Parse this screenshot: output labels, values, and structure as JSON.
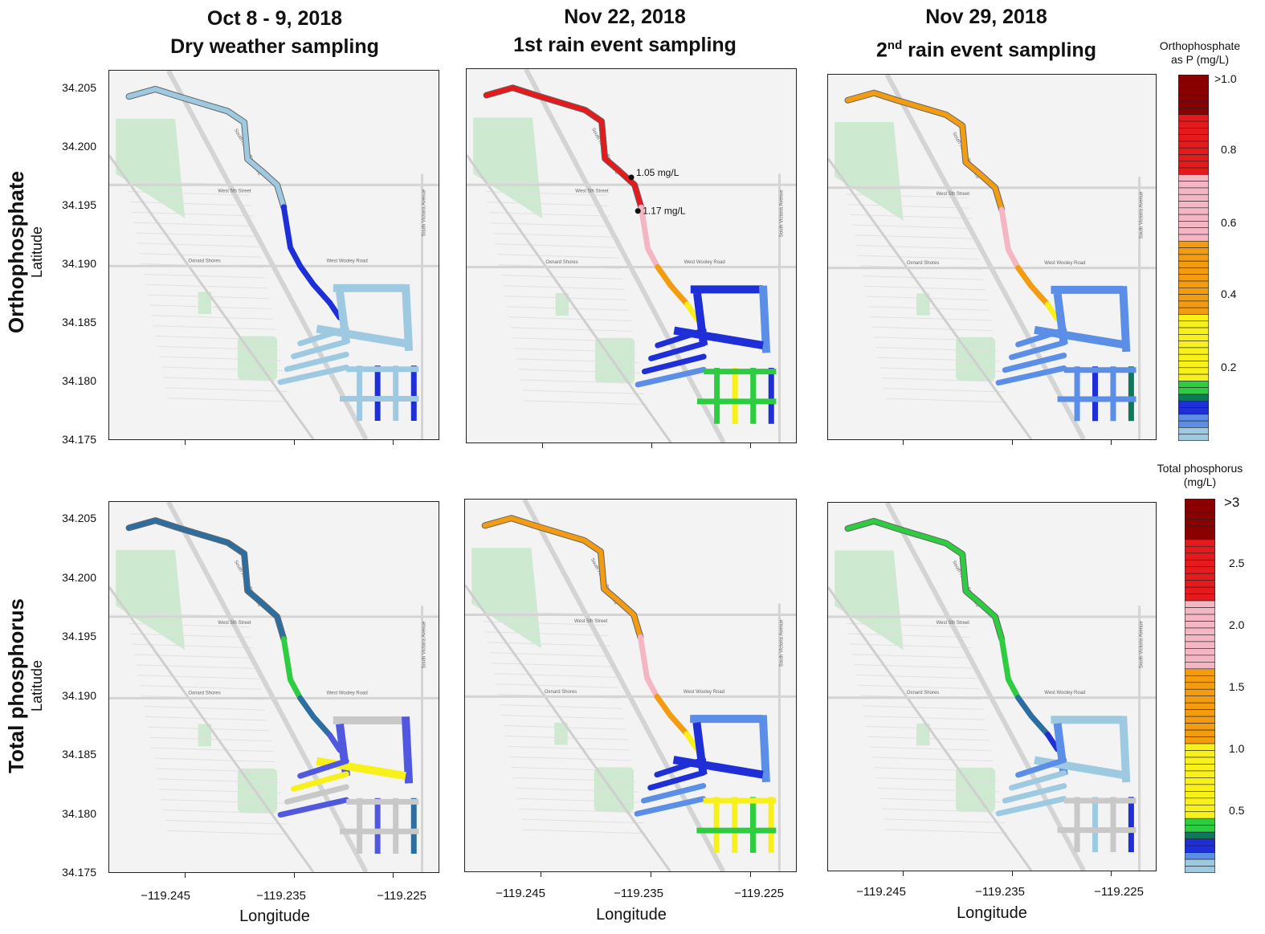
{
  "columns": [
    {
      "title_line1": "Oct 8 - 9, 2018",
      "title_line2": "Dry weather sampling",
      "sup": "",
      "tail": ""
    },
    {
      "title_line1": "Nov 22, 2018",
      "title_line2": "1st rain event sampling",
      "sup": "",
      "tail": ""
    },
    {
      "title_line1": "Nov 29, 2018",
      "title_line2": "2",
      "sup": "nd",
      "tail": " rain event sampling"
    }
  ],
  "rows": [
    {
      "label": "Orthophosphate",
      "sublabel": "Latitude"
    },
    {
      "label": "Total phosphorus",
      "sublabel": "Latitude"
    }
  ],
  "axes": {
    "y_ticks": [
      "34.205",
      "34.200",
      "34.195",
      "34.190",
      "34.185",
      "34.180",
      "34.175"
    ],
    "x_ticks": [
      "−119.245",
      "−119.235",
      "−119.225"
    ],
    "x_label": "Longitude"
  },
  "road_labels": {
    "west_5th": "West 5th Street",
    "west_wooley": "West Wooley Road",
    "oxnard_shores": "Oxnard Shores",
    "harbor_blvd": "South Harbor Boulevard",
    "victoria": "South Victoria Avenue"
  },
  "annotations": {
    "a1": "1.05 mg/L",
    "a2": "1.17 mg/L"
  },
  "colorbars": [
    {
      "title_line1": "Orthophosphate",
      "title_line2": "as P (mg/L)",
      "labels": [
        ">1.0",
        "0.8",
        "0.6",
        "0.4",
        "0.2"
      ]
    },
    {
      "title_line1": "Total phosphorus",
      "title_line2": "(mg/L)",
      "labels": [
        ">3",
        "2.5",
        "2.0",
        "1.5",
        "1.0",
        "0.5"
      ]
    }
  ],
  "colors": {
    "darkred": "#8b0000",
    "red": "#e41a1c",
    "pink": "#f4b6c2",
    "orange": "#f39c12",
    "yellow": "#f7f01a",
    "green": "#2ecc40",
    "teal": "#0c7a5a",
    "blue": "#1f2fd8",
    "medblue": "#5b8ee6",
    "lightblue": "#9ecae1",
    "gray": "#c8c8c8",
    "slate": "#2c6ea0",
    "violet": "#5058e0"
  },
  "panels": [
    {
      "id": "op-dry",
      "channel": "lightblue",
      "canal": [
        "blue",
        "blue",
        "blue"
      ],
      "marina": [
        "lightblue",
        "lightblue",
        "lightblue",
        "lightblue"
      ],
      "south": [
        "lightblue",
        "blue",
        "lightblue",
        "blue"
      ]
    },
    {
      "id": "op-rain1",
      "channel": "red",
      "canal": [
        "pink",
        "orange",
        "yellow"
      ],
      "marina": [
        "blue",
        "medblue",
        "blue",
        "blue"
      ],
      "south": [
        "green",
        "yellow",
        "green",
        "blue"
      ]
    },
    {
      "id": "op-rain2",
      "channel": "orange",
      "canal": [
        "pink",
        "orange",
        "yellow"
      ],
      "marina": [
        "medblue",
        "medblue",
        "medblue",
        "medblue"
      ],
      "south": [
        "medblue",
        "blue",
        "medblue",
        "teal"
      ]
    },
    {
      "id": "tp-dry",
      "channel": "slate",
      "canal": [
        "green",
        "slate",
        "violet"
      ],
      "marina": [
        "gray",
        "violet",
        "violet",
        "yellow"
      ],
      "south": [
        "gray",
        "violet",
        "gray",
        "slate"
      ]
    },
    {
      "id": "tp-rain1",
      "channel": "orange",
      "canal": [
        "pink",
        "orange",
        "yellow"
      ],
      "marina": [
        "medblue",
        "medblue",
        "blue",
        "blue"
      ],
      "south": [
        "yellow",
        "yellow",
        "green",
        "yellow"
      ]
    },
    {
      "id": "tp-rain2",
      "channel": "green",
      "canal": [
        "green",
        "slate",
        "blue"
      ],
      "marina": [
        "lightblue",
        "lightblue",
        "medblue",
        "lightblue"
      ],
      "south": [
        "gray",
        "lightblue",
        "gray",
        "blue"
      ]
    }
  ]
}
